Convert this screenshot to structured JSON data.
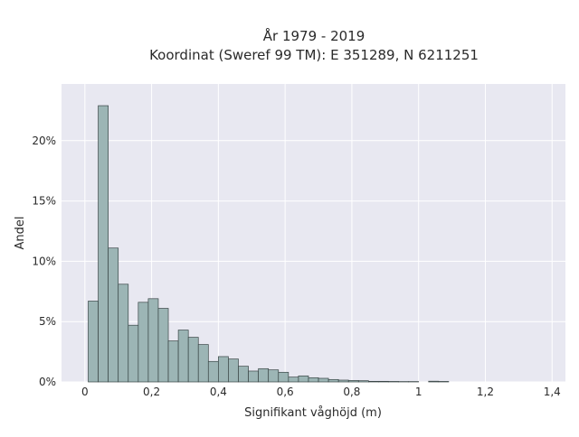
{
  "chart_data": {
    "type": "histogram",
    "title_line1": "År 1979 - 2019",
    "title_line2": "Koordinat (Sweref 99 TM): E 351289, N 6211251",
    "xlabel": "Signifikant våghöjd (m)",
    "ylabel": "Andel",
    "xlim": [
      -0.07,
      1.44
    ],
    "ylim": [
      0,
      24.7
    ],
    "grid": true,
    "x_ticks": [
      {
        "value": 0,
        "label": "0"
      },
      {
        "value": 0.2,
        "label": "0,2"
      },
      {
        "value": 0.4,
        "label": "0,4"
      },
      {
        "value": 0.6,
        "label": "0,6"
      },
      {
        "value": 0.8,
        "label": "0,8"
      },
      {
        "value": 1.0,
        "label": "1"
      },
      {
        "value": 1.2,
        "label": "1,2"
      },
      {
        "value": 1.4,
        "label": "1,4"
      }
    ],
    "y_ticks": [
      {
        "value": 0,
        "label": "0%"
      },
      {
        "value": 5,
        "label": "5%"
      },
      {
        "value": 10,
        "label": "10%"
      },
      {
        "value": 15,
        "label": "15%"
      },
      {
        "value": 20,
        "label": "20%"
      }
    ],
    "bin_width": 0.03,
    "bin_starts": [
      0.01,
      0.04,
      0.07,
      0.1,
      0.13,
      0.16,
      0.19,
      0.22,
      0.25,
      0.28,
      0.31,
      0.34,
      0.37,
      0.4,
      0.43,
      0.46,
      0.49,
      0.52,
      0.55,
      0.58,
      0.61,
      0.64,
      0.67,
      0.7,
      0.73,
      0.76,
      0.79,
      0.82,
      0.85,
      0.88,
      0.91,
      0.94,
      0.97,
      1.0,
      1.03,
      1.06
    ],
    "values": [
      6.7,
      22.9,
      11.1,
      8.1,
      4.7,
      6.6,
      6.9,
      6.1,
      3.4,
      4.3,
      3.7,
      3.1,
      1.7,
      2.1,
      1.9,
      1.3,
      0.9,
      1.1,
      1.0,
      0.8,
      0.4,
      0.5,
      0.35,
      0.3,
      0.2,
      0.15,
      0.12,
      0.1,
      0.05,
      0.05,
      0.04,
      0.03,
      0.03,
      0.0,
      0.06,
      0.04
    ],
    "colors": {
      "plot_bg": "#e8e8f1",
      "grid": "#ffffff",
      "bar_fill": "#9cb5b5",
      "bar_stroke": "#3a4646"
    }
  }
}
